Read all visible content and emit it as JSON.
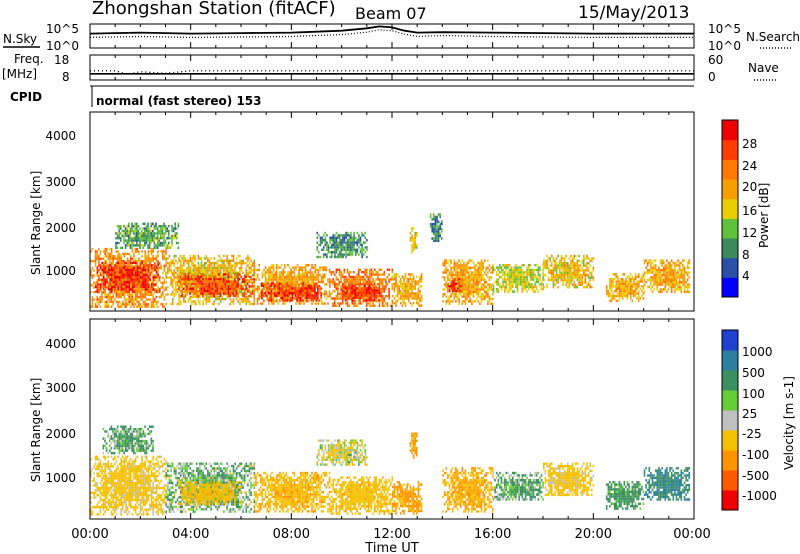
{
  "header": {
    "station": "Zhongshan Station (fitACF)",
    "beam": "Beam 07",
    "date": "15/May/2013"
  },
  "aux_panels": {
    "nsky_label": "N.Sky",
    "nsearch_label": "N.Search",
    "nsky_ticks": [
      "10^5",
      "10^0"
    ],
    "nsearch_ticks": [
      "10^5",
      "10^0"
    ],
    "freq_label_line1": "Freq.",
    "freq_label_line2": "[MHz]",
    "freq_ticks": [
      "18",
      "8"
    ],
    "nave_label": "Nave",
    "nave_ticks": [
      "60",
      "0"
    ],
    "cpid_label": "CPID",
    "cpid_text": "normal (fast stereo) 153"
  },
  "x_axis": {
    "label": "Time UT",
    "ticks": [
      "00:00",
      "04:00",
      "08:00",
      "12:00",
      "16:00",
      "20:00",
      "00:00"
    ]
  },
  "range_axis": {
    "label": "Slant Range [km]",
    "ticks": [
      "4000",
      "3000",
      "2000",
      "1000"
    ]
  },
  "power_colorbar": {
    "label": "Power [dB]",
    "ticks": [
      "28",
      "24",
      "20",
      "16",
      "12",
      "8",
      "4"
    ],
    "colors": [
      "#0000ff",
      "#2a4fa8",
      "#3c8a5a",
      "#5fc23a",
      "#e8d000",
      "#f5a000",
      "#ff7800",
      "#ff3c00",
      "#ee0000"
    ]
  },
  "velocity_colorbar": {
    "label": "Velocity [m s-1]",
    "ticks": [
      "1000",
      "500",
      "100",
      "25",
      "-25",
      "-100",
      "-500",
      "-1000"
    ],
    "colors": [
      "#2040d0",
      "#2d7fa0",
      "#3c9060",
      "#66cc33",
      "#c0c0c0",
      "#f5c000",
      "#ff9400",
      "#ff5a00",
      "#ee0000"
    ]
  },
  "chart_data": [
    {
      "type": "line",
      "name": "aux-nsky-nsearch",
      "x_hours": [
        0,
        2,
        4,
        6,
        8,
        9,
        10,
        11,
        11.5,
        12,
        12.5,
        13,
        14,
        16,
        18,
        20,
        22,
        24
      ],
      "series": [
        {
          "name": "N.Sky",
          "values": [
            3,
            3.2,
            3,
            3.1,
            3.2,
            3.4,
            3.6,
            4.1,
            4.5,
            4.3,
            3.6,
            3.2,
            3.3,
            3.2,
            3.1,
            3,
            3,
            3
          ]
        },
        {
          "name": "N.Search",
          "values": [
            2.2,
            2.4,
            2.2,
            2.3,
            2.4,
            2.6,
            2.8,
            3.3,
            3.8,
            3.6,
            2.9,
            2.4,
            2.6,
            2.4,
            2.3,
            2.2,
            2.2,
            2.2
          ]
        }
      ],
      "ylim": [
        0,
        5
      ]
    },
    {
      "type": "line",
      "name": "aux-freq-nave",
      "x_hours": [
        0,
        1,
        1.5,
        2,
        3,
        4,
        6,
        8,
        12,
        16,
        20,
        24
      ],
      "series": [
        {
          "name": "Freq",
          "values": [
            10.5,
            10.5,
            10.5,
            10.5,
            10.5,
            10.5,
            10.5,
            10.5,
            10.5,
            10.5,
            10.5,
            10.5
          ]
        },
        {
          "name": "Nave",
          "values": [
            22,
            22,
            14,
            20,
            16,
            22,
            22,
            22,
            22,
            22,
            22,
            22
          ]
        }
      ]
    },
    {
      "type": "heatmap",
      "name": "power",
      "title": "Power [dB]",
      "xlabel": "Time UT",
      "ylabel": "Slant Range [km]",
      "xlim_hours": [
        0,
        24
      ],
      "ylim_km": [
        180,
        4500
      ],
      "clim": [
        0,
        32
      ],
      "blobs": [
        {
          "t0": 0,
          "t1": 3,
          "r0": 250,
          "r1": 1550,
          "v": 22
        },
        {
          "t0": 0.2,
          "t1": 2.8,
          "r0": 600,
          "r1": 1250,
          "v": 29
        },
        {
          "t0": 1,
          "t1": 3.5,
          "r0": 1550,
          "r1": 2100,
          "v": 10
        },
        {
          "t0": 3,
          "t1": 6.5,
          "r0": 350,
          "r1": 1400,
          "v": 18
        },
        {
          "t0": 3.5,
          "t1": 6.5,
          "r0": 500,
          "r1": 1000,
          "v": 27
        },
        {
          "t0": 6.5,
          "t1": 9.5,
          "r0": 350,
          "r1": 1200,
          "v": 21
        },
        {
          "t0": 6.8,
          "t1": 9.2,
          "r0": 400,
          "r1": 800,
          "v": 28
        },
        {
          "t0": 9,
          "t1": 11,
          "r0": 1350,
          "r1": 1900,
          "v": 9
        },
        {
          "t0": 9.5,
          "t1": 12,
          "r0": 300,
          "r1": 1100,
          "v": 24
        },
        {
          "t0": 10,
          "t1": 11.5,
          "r0": 400,
          "r1": 750,
          "v": 29
        },
        {
          "t0": 12,
          "t1": 13.2,
          "r0": 300,
          "r1": 1000,
          "v": 20
        },
        {
          "t0": 12.7,
          "t1": 13,
          "r0": 1400,
          "r1": 2000,
          "v": 17
        },
        {
          "t0": 13.5,
          "t1": 14,
          "r0": 1700,
          "r1": 2300,
          "v": 8
        },
        {
          "t0": 14,
          "t1": 16,
          "r0": 350,
          "r1": 1300,
          "v": 20
        },
        {
          "t0": 14.2,
          "t1": 14.8,
          "r0": 600,
          "r1": 900,
          "v": 29
        },
        {
          "t0": 16,
          "t1": 18,
          "r0": 600,
          "r1": 1200,
          "v": 15
        },
        {
          "t0": 18,
          "t1": 20,
          "r0": 700,
          "r1": 1400,
          "v": 18
        },
        {
          "t0": 20.5,
          "t1": 22,
          "r0": 400,
          "r1": 1000,
          "v": 19
        },
        {
          "t0": 22,
          "t1": 23.8,
          "r0": 600,
          "r1": 1300,
          "v": 20
        }
      ]
    },
    {
      "type": "heatmap",
      "name": "velocity",
      "title": "Velocity [m s-1]",
      "xlabel": "Time UT",
      "ylabel": "Slant Range [km]",
      "xlim_hours": [
        0,
        24
      ],
      "ylim_km": [
        180,
        4500
      ],
      "clim": [
        -1000,
        1000
      ],
      "blobs": [
        {
          "t0": 0,
          "t1": 3,
          "r0": 300,
          "r1": 1550,
          "v": -150
        },
        {
          "t0": 0.5,
          "t1": 2.5,
          "r0": 1600,
          "r1": 2200,
          "v": 80
        },
        {
          "t0": 3,
          "t1": 6.5,
          "r0": 350,
          "r1": 1400,
          "v": 60
        },
        {
          "t0": 3.5,
          "t1": 6,
          "r0": 500,
          "r1": 1000,
          "v": -200
        },
        {
          "t0": 6.5,
          "t1": 9.5,
          "r0": 350,
          "r1": 1200,
          "v": -250
        },
        {
          "t0": 9,
          "t1": 11,
          "r0": 1350,
          "r1": 1900,
          "v": -60
        },
        {
          "t0": 9.5,
          "t1": 12,
          "r0": 300,
          "r1": 1100,
          "v": -200
        },
        {
          "t0": 12,
          "t1": 13.2,
          "r0": 300,
          "r1": 1000,
          "v": -350
        },
        {
          "t0": 12.7,
          "t1": 13,
          "r0": 1500,
          "r1": 2100,
          "v": -400
        },
        {
          "t0": 14,
          "t1": 16,
          "r0": 350,
          "r1": 1300,
          "v": -300
        },
        {
          "t0": 16,
          "t1": 18,
          "r0": 600,
          "r1": 1200,
          "v": 80
        },
        {
          "t0": 18,
          "t1": 20,
          "r0": 700,
          "r1": 1400,
          "v": -150
        },
        {
          "t0": 20.5,
          "t1": 22,
          "r0": 400,
          "r1": 1000,
          "v": 150
        },
        {
          "t0": 22,
          "t1": 23.8,
          "r0": 600,
          "r1": 1300,
          "v": 300
        }
      ]
    }
  ]
}
